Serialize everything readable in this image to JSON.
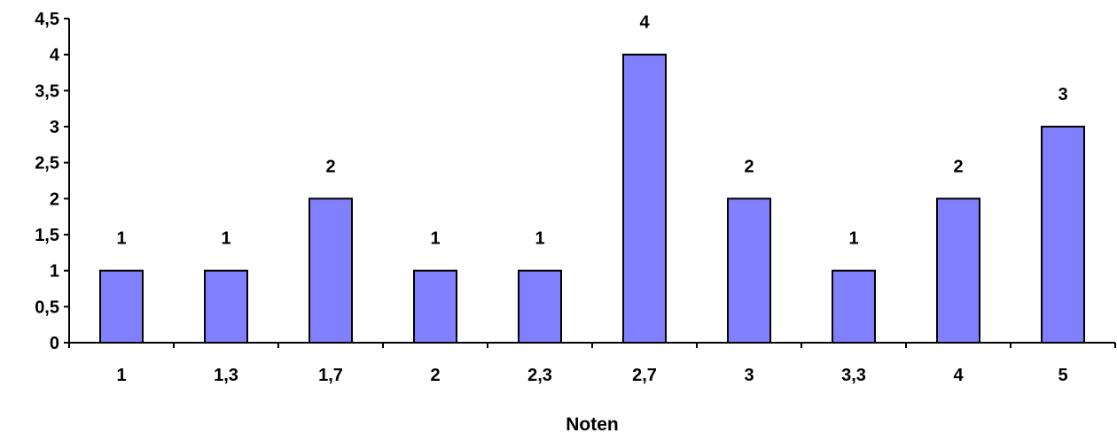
{
  "chart_data": {
    "type": "bar",
    "categories": [
      "1",
      "1,3",
      "1,7",
      "2",
      "2,3",
      "2,7",
      "3",
      "3,3",
      "4",
      "5"
    ],
    "values": [
      1,
      1,
      2,
      1,
      1,
      4,
      2,
      1,
      2,
      3
    ],
    "data_labels": [
      "1",
      "1",
      "2",
      "1",
      "1",
      "4",
      "2",
      "1",
      "2",
      "3"
    ],
    "y_ticks": [
      0,
      0.5,
      1,
      1.5,
      2,
      2.5,
      3,
      3.5,
      4,
      4.5
    ],
    "y_tick_labels": [
      "0",
      "0,5",
      "1",
      "1,5",
      "2",
      "2,5",
      "3",
      "3,5",
      "4",
      "4,5"
    ],
    "title": "",
    "xlabel": "Noten",
    "ylabel": "",
    "ylim": [
      0,
      4.5
    ],
    "grid": false,
    "legend": "none",
    "colors": {
      "bar_fill": "#8080ff",
      "bar_stroke": "#000000",
      "axis": "#000000",
      "text": "#000000"
    }
  }
}
